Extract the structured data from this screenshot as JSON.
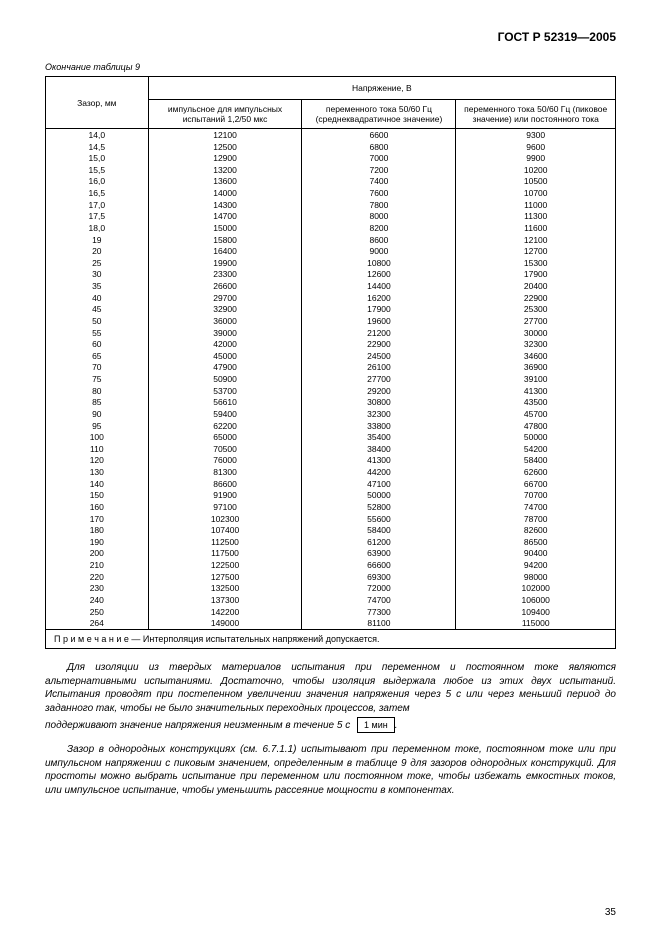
{
  "doc_id": "ГОСТ Р 52319—2005",
  "table_continuation": "Окончание таблицы 9",
  "headers": {
    "gap": "Зазор, мм",
    "voltage_group": "Напряжение, В",
    "col1": "импульсное для импульсных испытаний 1,2/50 мкс",
    "col2": "переменного тока 50/60 Гц (среднеквадратичное значение)",
    "col3": "переменного тока 50/60 Гц (пиковое значение) или постоянного тока"
  },
  "rows": [
    [
      "14,0",
      "12100",
      "6600",
      "9300"
    ],
    [
      "14,5",
      "12500",
      "6800",
      "9600"
    ],
    [
      "15,0",
      "12900",
      "7000",
      "9900"
    ],
    [
      "15,5",
      "13200",
      "7200",
      "10200"
    ],
    [
      "16,0",
      "13600",
      "7400",
      "10500"
    ],
    [
      "16,5",
      "14000",
      "7600",
      "10700"
    ],
    [
      "17,0",
      "14300",
      "7800",
      "11000"
    ],
    [
      "17,5",
      "14700",
      "8000",
      "11300"
    ],
    [
      "18,0",
      "15000",
      "8200",
      "11600"
    ],
    [
      "19",
      "15800",
      "8600",
      "12100"
    ],
    [
      "20",
      "16400",
      "9000",
      "12700"
    ],
    [
      "25",
      "19900",
      "10800",
      "15300"
    ],
    [
      "30",
      "23300",
      "12600",
      "17900"
    ],
    [
      "35",
      "26600",
      "14400",
      "20400"
    ],
    [
      "40",
      "29700",
      "16200",
      "22900"
    ],
    [
      "45",
      "32900",
      "17900",
      "25300"
    ],
    [
      "50",
      "36000",
      "19600",
      "27700"
    ],
    [
      "55",
      "39000",
      "21200",
      "30000"
    ],
    [
      "60",
      "42000",
      "22900",
      "32300"
    ],
    [
      "65",
      "45000",
      "24500",
      "34600"
    ],
    [
      "70",
      "47900",
      "26100",
      "36900"
    ],
    [
      "75",
      "50900",
      "27700",
      "39100"
    ],
    [
      "80",
      "53700",
      "29200",
      "41300"
    ],
    [
      "85",
      "56610",
      "30800",
      "43500"
    ],
    [
      "90",
      "59400",
      "32300",
      "45700"
    ],
    [
      "95",
      "62200",
      "33800",
      "47800"
    ],
    [
      "100",
      "65000",
      "35400",
      "50000"
    ],
    [
      "110",
      "70500",
      "38400",
      "54200"
    ],
    [
      "120",
      "76000",
      "41300",
      "58400"
    ],
    [
      "130",
      "81300",
      "44200",
      "62600"
    ],
    [
      "140",
      "86600",
      "47100",
      "66700"
    ],
    [
      "150",
      "91900",
      "50000",
      "70700"
    ],
    [
      "160",
      "97100",
      "52800",
      "74700"
    ],
    [
      "170",
      "102300",
      "55600",
      "78700"
    ],
    [
      "180",
      "107400",
      "58400",
      "82600"
    ],
    [
      "190",
      "112500",
      "61200",
      "86500"
    ],
    [
      "200",
      "117500",
      "63900",
      "90400"
    ],
    [
      "210",
      "122500",
      "66600",
      "94200"
    ],
    [
      "220",
      "127500",
      "69300",
      "98000"
    ],
    [
      "230",
      "132500",
      "72000",
      "102000"
    ],
    [
      "240",
      "137300",
      "74700",
      "106000"
    ],
    [
      "250",
      "142200",
      "77300",
      "109400"
    ],
    [
      "264",
      "149000",
      "81100",
      "115000"
    ]
  ],
  "note": "П р и м е ч а н и е — Интерполяция испытательных напряжений допускается.",
  "para1": "Для изоляции из твердых материалов испытания при переменном и постоянном токе являются альтернативными испытаниями. Достаточно, чтобы изоляция выдержала любое из этих двух испытаний. Испытания проводят при постепенном увеличении значения напряжения через 5 с или через меньший период до заданного так, чтобы не было значительных переходных процессов, затем",
  "para2_prefix": "поддерживают значение напряжения неизменным в течение 5 с",
  "para2_box": "1 мин",
  "para2_suffix": ".",
  "para3": "Зазор в однородных конструкциях (см. 6.7.1.1) испытывают при переменном токе, постоянном токе или при импульсном напряжении с пиковым значением, определенным в таблице 9 для зазоров однородных конструкций. Для простоты можно выбрать испытание при переменном или постоянном токе, чтобы избежать емкостных токов, или импульсное испытание, чтобы уменьшить рассеяние мощности в компонентах.",
  "page_number": "35"
}
